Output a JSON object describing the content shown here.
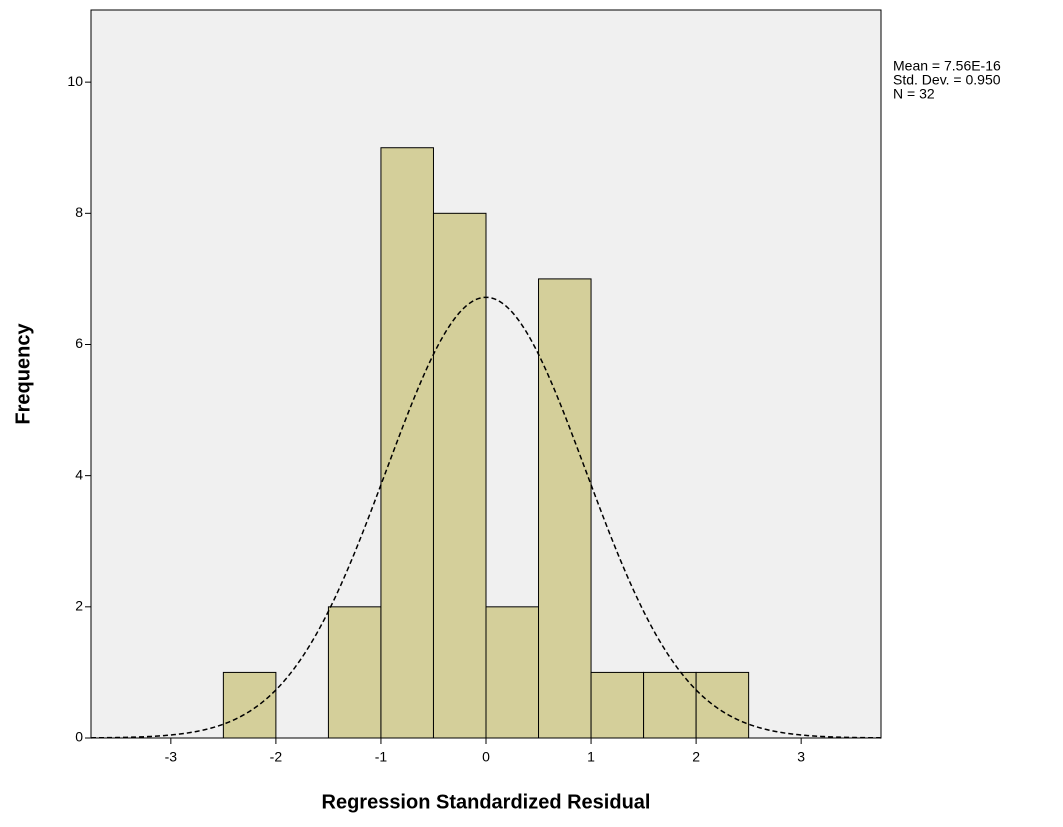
{
  "chart_data": {
    "type": "histogram",
    "x_label": "Regression Standardized Residual",
    "y_label": "Frequency",
    "bins": [
      -2.5,
      -2,
      -1.5,
      -1,
      -0.5,
      0,
      0.5,
      1,
      1.5,
      2,
      2.5
    ],
    "values": [
      1,
      0,
      2,
      9,
      8,
      2,
      7,
      1,
      1,
      1
    ],
    "color": "#d4cf9a",
    "stats": [
      {
        "value": 7.56e-16,
        "label": "Mean = 7.56E-16"
      },
      {
        "value": 0.95,
        "label": "Std. Dev. = 0.950"
      },
      {
        "value": 32,
        "label": "N = 32"
      }
    ],
    "xlim": [
      -3.76,
      3.76
    ],
    "ylim": [
      0,
      11.1
    ],
    "xticks": [
      -3,
      -2,
      -1,
      0,
      1,
      2,
      3
    ],
    "yticks": [
      0,
      2,
      4,
      6,
      8,
      10
    ]
  }
}
